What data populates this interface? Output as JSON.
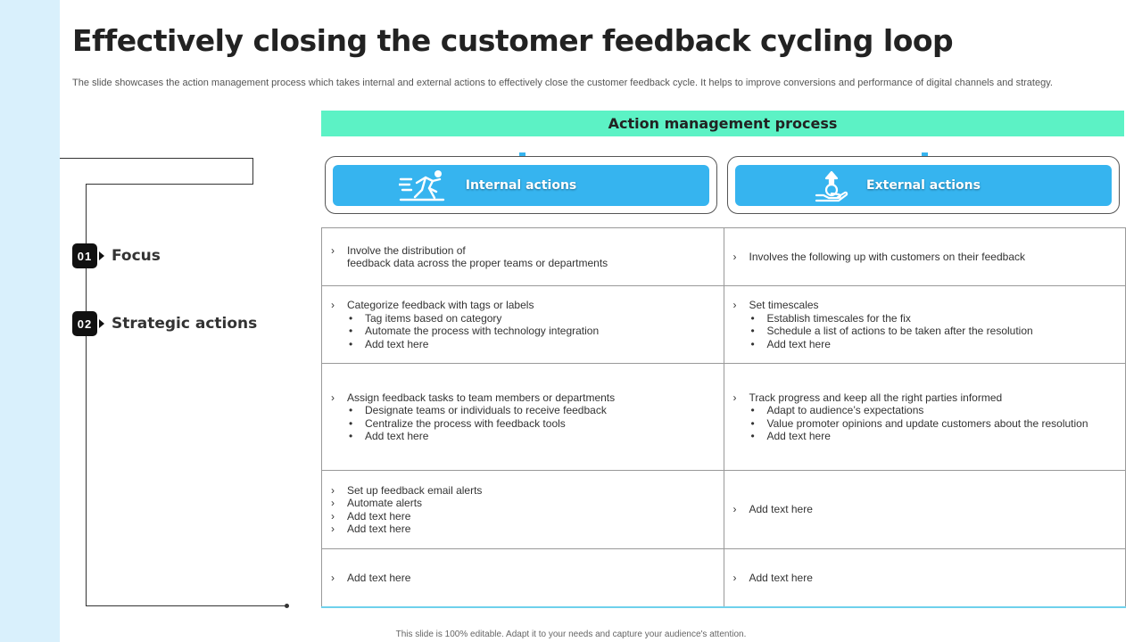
{
  "title": "Effectively closing the customer feedback cycling loop",
  "subtitle": "The slide showcases the action management process which takes internal and external actions to effectively  close the customer feedback cycle. It helps to improve conversions and performance of digital channels and strategy.",
  "steps": [
    {
      "num": "01",
      "label": "Focus"
    },
    {
      "num": "02",
      "label": "Strategic actions"
    }
  ],
  "process_title": "Action management process",
  "columns": [
    {
      "label": "Internal actions",
      "icon": "runner-icon"
    },
    {
      "label": "External actions",
      "icon": "hand-growth-icon"
    }
  ],
  "rows": [
    {
      "left": {
        "items": [
          "Involve the distribution of",
          "feedback data across the proper teams or departments"
        ],
        "bullets": []
      },
      "right": {
        "items": [
          "Involves the following up with customers on their feedback"
        ],
        "bullets": []
      }
    },
    {
      "left": {
        "items": [
          "Categorize feedback with tags or labels"
        ],
        "bullets": [
          "Tag items based on category",
          "Automate the process with technology integration",
          "Add text here"
        ]
      },
      "right": {
        "items": [
          "Set timescales"
        ],
        "bullets": [
          "Establish timescales for the fix",
          "Schedule a list of actions to be taken after the resolution",
          "Add text here"
        ]
      }
    },
    {
      "left": {
        "items": [
          "Assign feedback tasks to team members or departments"
        ],
        "bullets": [
          "Designate teams or individuals to receive feedback",
          "Centralize the process with feedback tools",
          "Add text here"
        ]
      },
      "right": {
        "items": [
          "Track progress and keep all the right parties informed"
        ],
        "bullets": [
          "Adapt to audience’s expectations",
          "Value promoter opinions and update customers about the resolution",
          "Add text here"
        ]
      }
    },
    {
      "left": {
        "items": [
          "Set up feedback email alerts",
          "Automate alerts",
          "Add text here",
          "Add text here"
        ],
        "bullets": []
      },
      "right": {
        "items": [
          "Add text here"
        ],
        "bullets": []
      }
    },
    {
      "left": {
        "items": [
          "Add text here"
        ],
        "bullets": []
      },
      "right": {
        "items": [
          "Add text here"
        ],
        "bullets": []
      }
    }
  ],
  "chevron_glyph": "›",
  "bullet_glyph": "•",
  "footer": "This slide is 100% editable. Adapt it to your needs and capture your audience's attention.",
  "colors": {
    "accent_teal": "#5cf2c5",
    "accent_blue": "#36b4ef",
    "left_band": "#d9f0fc"
  }
}
